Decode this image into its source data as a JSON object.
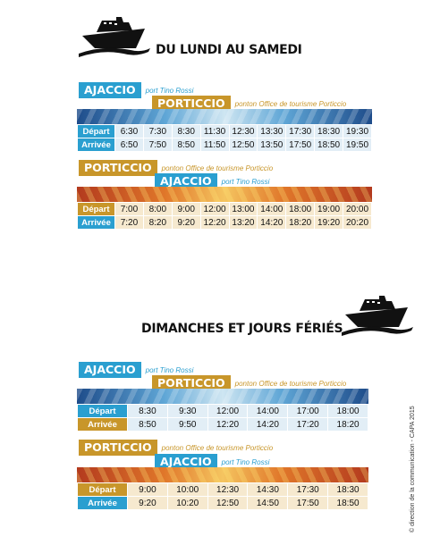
{
  "weekday": {
    "title": "DU LUNDI AU SAMEDI",
    "outbound": {
      "from": {
        "name": "AJACCIO",
        "note": "port Tino Rossi"
      },
      "to": {
        "name": "PORTICCIO",
        "note": "ponton Office de tourisme Porticcio"
      },
      "depart_label": "Départ",
      "arrive_label": "Arrivée",
      "depart": [
        "6:30",
        "7:30",
        "8:30",
        "11:30",
        "12:30",
        "13:30",
        "17:30",
        "18:30",
        "19:30"
      ],
      "arrive": [
        "6:50",
        "7:50",
        "8:50",
        "11:50",
        "12:50",
        "13:50",
        "17:50",
        "18:50",
        "19:50"
      ]
    },
    "return": {
      "from": {
        "name": "PORTICCIO",
        "note": "ponton Office de tourisme Porticcio"
      },
      "to": {
        "name": "AJACCIO",
        "note": "port Tino Rossi"
      },
      "depart_label": "Départ",
      "arrive_label": "Arrivée",
      "depart": [
        "7:00",
        "8:00",
        "9:00",
        "12:00",
        "13:00",
        "14:00",
        "18:00",
        "19:00",
        "20:00"
      ],
      "arrive": [
        "7:20",
        "8:20",
        "9:20",
        "12:20",
        "13:20",
        "14:20",
        "18:20",
        "19:20",
        "20:20"
      ]
    }
  },
  "sunday": {
    "title": "DIMANCHES ET JOURS FÉRIÉS",
    "outbound": {
      "from": {
        "name": "AJACCIO",
        "note": "port Tino Rossi"
      },
      "to": {
        "name": "PORTICCIO",
        "note": "ponton Office de tourisme Porticcio"
      },
      "depart_label": "Départ",
      "arrive_label": "Arrivée",
      "depart": [
        "8:30",
        "9:30",
        "12:00",
        "14:00",
        "17:00",
        "18:00"
      ],
      "arrive": [
        "8:50",
        "9:50",
        "12:20",
        "14:20",
        "17:20",
        "18:20"
      ]
    },
    "return": {
      "from": {
        "name": "PORTICCIO",
        "note": "ponton Office de tourisme Porticcio"
      },
      "to": {
        "name": "AJACCIO",
        "note": "port Tino Rossi"
      },
      "depart_label": "Départ",
      "arrive_label": "Arrivée",
      "depart": [
        "9:00",
        "10:00",
        "12:30",
        "14:30",
        "17:30",
        "18:30"
      ],
      "arrive": [
        "9:20",
        "10:20",
        "12:50",
        "14:50",
        "17:50",
        "18:50"
      ]
    }
  },
  "credit": "© direction de la communication - CAPA 2015",
  "colors": {
    "blue": "#2a9fd0",
    "gold": "#c8962a"
  },
  "icons": [
    "ship-icon"
  ]
}
